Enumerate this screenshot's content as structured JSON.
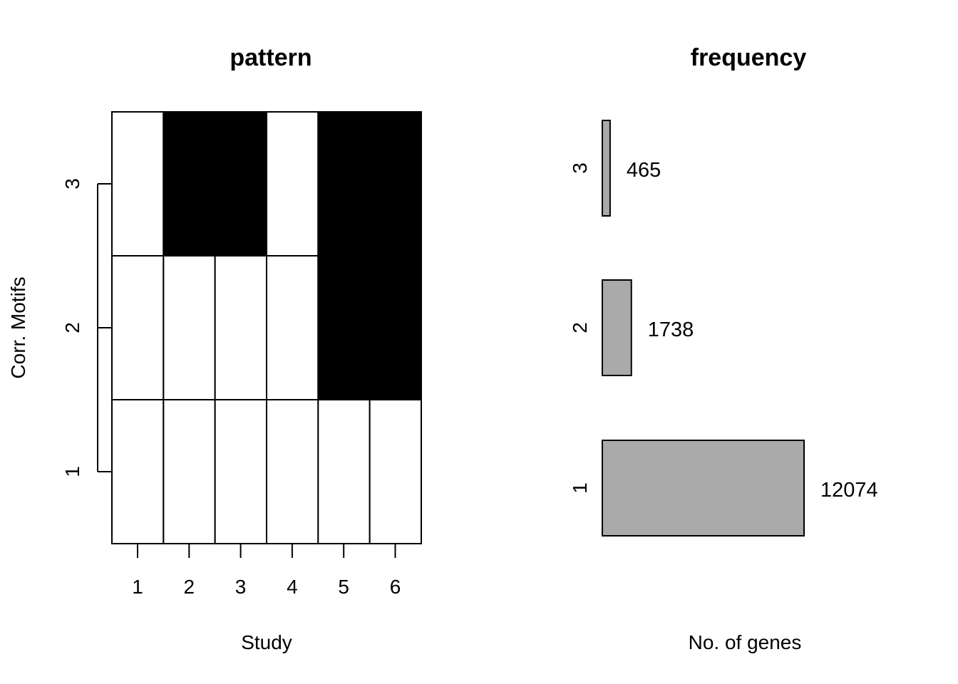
{
  "chart_data": [
    {
      "type": "heatmap",
      "title": "pattern",
      "xlabel": "Study",
      "ylabel": "Corr. Motifs",
      "x_categories": [
        "1",
        "2",
        "3",
        "4",
        "5",
        "6"
      ],
      "y_categories": [
        "1",
        "2",
        "3"
      ],
      "matrix": [
        [
          0,
          0,
          0,
          0,
          0,
          0
        ],
        [
          0,
          0,
          0,
          0,
          1,
          1
        ],
        [
          0,
          1,
          1,
          0,
          1,
          1
        ]
      ],
      "colors": {
        "0": "#ffffff",
        "1": "#000000"
      },
      "grid": false
    },
    {
      "type": "bar",
      "orientation": "horizontal",
      "title": "frequency",
      "xlabel": "No. of genes",
      "ylabel": "",
      "categories": [
        "1",
        "2",
        "3"
      ],
      "values": [
        12074,
        1738,
        465
      ],
      "value_labels": [
        "12074",
        "1738",
        "465"
      ],
      "bar_color": "#aaaaaa",
      "grid": false
    }
  ]
}
